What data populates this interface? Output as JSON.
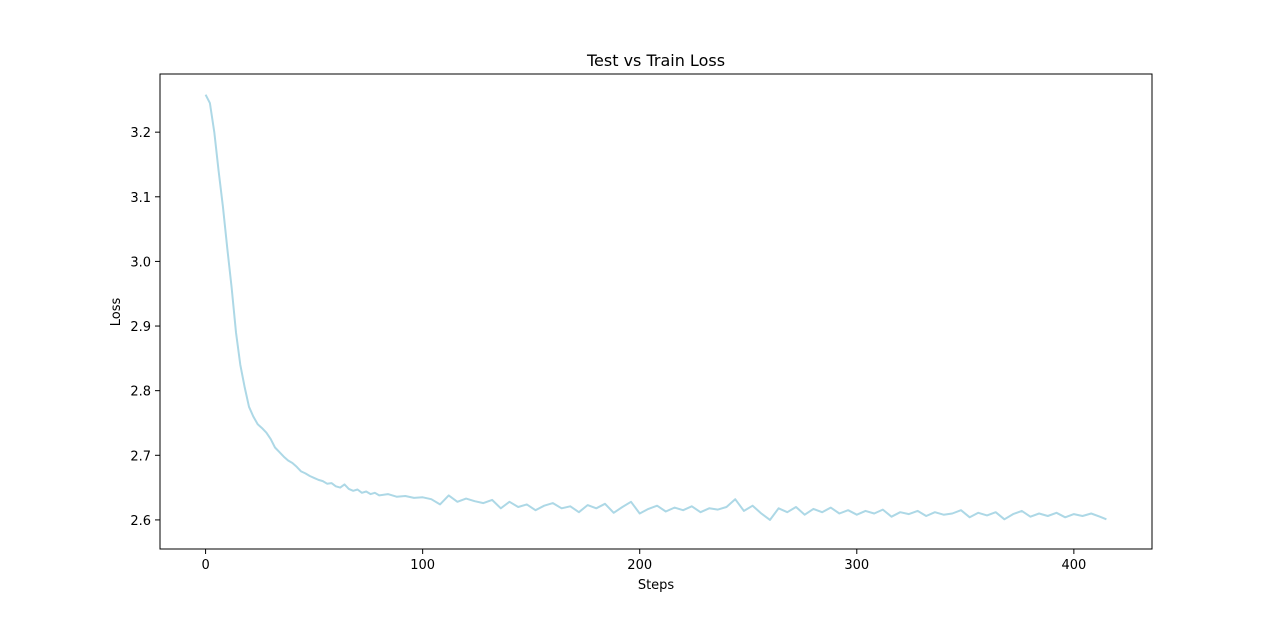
{
  "chart_data": {
    "type": "line",
    "title": "Test vs Train Loss",
    "xlabel": "Steps",
    "ylabel": "Loss",
    "xlim": [
      -21,
      436
    ],
    "ylim": [
      2.555,
      3.29
    ],
    "xticks": [
      0,
      100,
      200,
      300,
      400
    ],
    "yticks": [
      2.6,
      2.7,
      2.8,
      2.9,
      3.0,
      3.1,
      3.2
    ],
    "xtick_labels": [
      "0",
      "100",
      "200",
      "300",
      "400"
    ],
    "ytick_labels": [
      "2.6",
      "2.7",
      "2.8",
      "2.9",
      "3.0",
      "3.1",
      "3.2"
    ],
    "grid": false,
    "series": [
      {
        "color": "#add8e6",
        "x": [
          0,
          2,
          4,
          6,
          8,
          10,
          12,
          14,
          16,
          18,
          20,
          22,
          24,
          26,
          28,
          30,
          32,
          34,
          36,
          38,
          40,
          42,
          44,
          46,
          48,
          50,
          52,
          54,
          56,
          58,
          60,
          62,
          64,
          66,
          68,
          70,
          72,
          74,
          76,
          78,
          80,
          84,
          88,
          92,
          96,
          100,
          104,
          108,
          112,
          116,
          120,
          124,
          128,
          132,
          136,
          140,
          144,
          148,
          152,
          156,
          160,
          164,
          168,
          172,
          176,
          180,
          184,
          188,
          192,
          196,
          200,
          204,
          208,
          212,
          216,
          220,
          224,
          228,
          232,
          236,
          240,
          244,
          248,
          252,
          256,
          260,
          264,
          268,
          272,
          276,
          280,
          284,
          288,
          292,
          296,
          300,
          304,
          308,
          312,
          316,
          320,
          324,
          328,
          332,
          336,
          340,
          344,
          348,
          352,
          356,
          360,
          364,
          368,
          372,
          376,
          380,
          384,
          388,
          392,
          396,
          400,
          404,
          408,
          412,
          415
        ],
        "y": [
          3.258,
          3.245,
          3.2,
          3.14,
          3.085,
          3.02,
          2.96,
          2.89,
          2.84,
          2.805,
          2.775,
          2.76,
          2.748,
          2.742,
          2.735,
          2.725,
          2.712,
          2.705,
          2.698,
          2.692,
          2.688,
          2.682,
          2.675,
          2.672,
          2.668,
          2.665,
          2.662,
          2.66,
          2.656,
          2.657,
          2.652,
          2.65,
          2.655,
          2.648,
          2.645,
          2.647,
          2.642,
          2.644,
          2.64,
          2.642,
          2.638,
          2.64,
          2.636,
          2.637,
          2.634,
          2.635,
          2.632,
          2.624,
          2.638,
          2.628,
          2.633,
          2.629,
          2.626,
          2.631,
          2.618,
          2.628,
          2.62,
          2.624,
          2.615,
          2.622,
          2.626,
          2.618,
          2.621,
          2.612,
          2.623,
          2.618,
          2.625,
          2.611,
          2.62,
          2.628,
          2.61,
          2.617,
          2.622,
          2.613,
          2.619,
          2.615,
          2.621,
          2.612,
          2.618,
          2.616,
          2.62,
          2.632,
          2.614,
          2.622,
          2.61,
          2.6,
          2.618,
          2.612,
          2.62,
          2.608,
          2.617,
          2.612,
          2.619,
          2.61,
          2.615,
          2.608,
          2.614,
          2.61,
          2.616,
          2.605,
          2.612,
          2.609,
          2.614,
          2.606,
          2.612,
          2.608,
          2.61,
          2.615,
          2.604,
          2.611,
          2.607,
          2.612,
          2.601,
          2.609,
          2.614,
          2.605,
          2.61,
          2.606,
          2.611,
          2.604,
          2.609,
          2.606,
          2.61,
          2.605,
          2.601
        ]
      }
    ]
  }
}
